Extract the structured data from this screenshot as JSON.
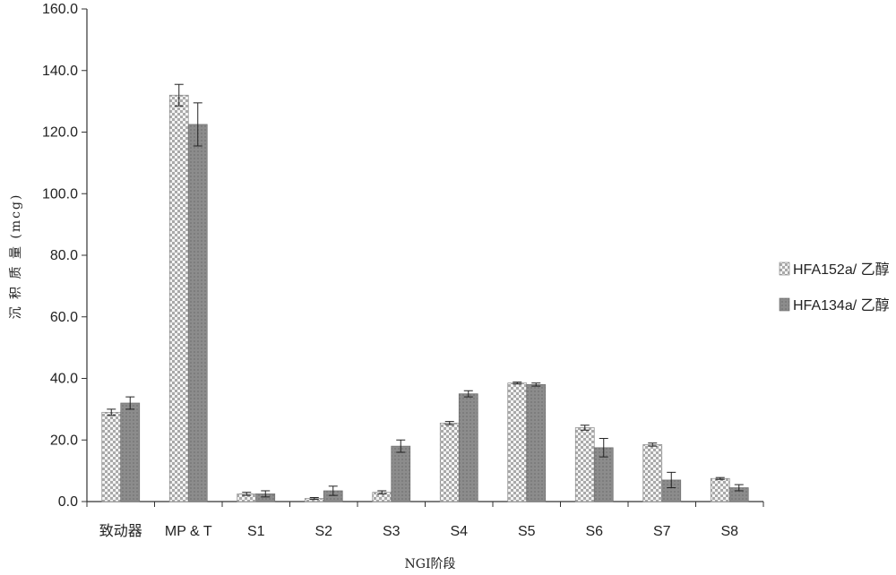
{
  "chart_data": {
    "type": "bar",
    "title": "",
    "xlabel": "NGI阶段",
    "ylabel": "沉 积 质 量 (mcg)",
    "ylim": [
      0,
      160
    ],
    "yticks": [
      "0.0",
      "20.0",
      "40.0",
      "60.0",
      "80.0",
      "100.0",
      "120.0",
      "140.0",
      "160.0"
    ],
    "grid": false,
    "legend_position": "right",
    "categories": [
      "致动器",
      "MP & T",
      "S1",
      "S2",
      "S3",
      "S4",
      "S5",
      "S6",
      "S7",
      "S8"
    ],
    "series": [
      {
        "name": "HFA152a/ 乙醇",
        "pattern": "dotted-checker",
        "color": "#bdbdbd",
        "values": [
          29.0,
          132.0,
          2.5,
          1.0,
          3.0,
          25.5,
          38.5,
          24.0,
          18.5,
          7.5
        ],
        "errors": [
          1.0,
          3.5,
          0.5,
          0.3,
          0.5,
          0.5,
          0.3,
          0.8,
          0.5,
          0.3
        ]
      },
      {
        "name": "HFA134a/ 乙醇",
        "pattern": "solid",
        "color": "#8c8c8c",
        "values": [
          32.0,
          122.5,
          2.5,
          3.5,
          18.0,
          35.0,
          38.0,
          17.5,
          7.0,
          4.5
        ],
        "errors": [
          2.0,
          7.0,
          1.0,
          1.5,
          2.0,
          1.0,
          0.5,
          3.0,
          2.5,
          1.0
        ]
      }
    ]
  }
}
